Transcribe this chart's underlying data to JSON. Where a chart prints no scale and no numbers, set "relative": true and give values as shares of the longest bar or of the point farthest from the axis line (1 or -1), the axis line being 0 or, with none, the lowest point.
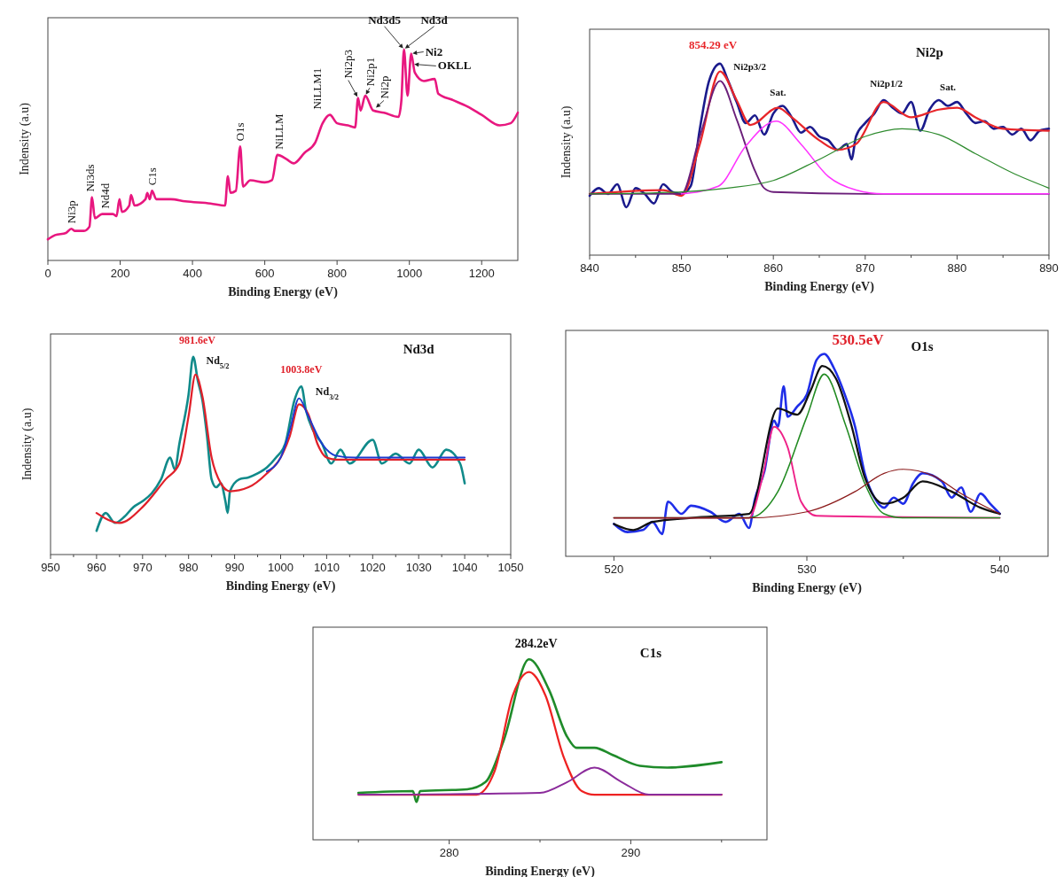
{
  "chart_data": [
    {
      "type": "line",
      "relative": true,
      "xlabel": "Binding Energy (eV)",
      "ylabel": "Indensity (a.u)",
      "xlim": [
        0,
        1300
      ],
      "xticks": [
        0,
        200,
        400,
        600,
        800,
        1000,
        1200
      ],
      "series": [
        {
          "color": "#e8177f",
          "x": [
            0,
            20,
            50,
            65,
            75,
            100,
            115,
            122,
            130,
            150,
            180,
            190,
            198,
            205,
            225,
            230,
            240,
            270,
            275,
            282,
            288,
            300,
            340,
            380,
            450,
            490,
            498,
            505,
            520,
            532,
            540,
            560,
            600,
            620,
            635,
            660,
            680,
            710,
            740,
            760,
            780,
            800,
            830,
            850,
            858,
            865,
            878,
            900,
            930,
            970,
            978,
            985,
            995,
            1005,
            1015,
            1040,
            1070,
            1080,
            1120,
            1160,
            1200,
            1250,
            1280,
            1300
          ],
          "values": [
            0.1,
            0.12,
            0.13,
            0.15,
            0.14,
            0.14,
            0.16,
            0.3,
            0.2,
            0.22,
            0.22,
            0.21,
            0.29,
            0.23,
            0.26,
            0.31,
            0.26,
            0.29,
            0.32,
            0.29,
            0.33,
            0.29,
            0.29,
            0.28,
            0.27,
            0.26,
            0.4,
            0.32,
            0.33,
            0.54,
            0.35,
            0.38,
            0.37,
            0.38,
            0.5,
            0.48,
            0.46,
            0.51,
            0.56,
            0.65,
            0.69,
            0.65,
            0.64,
            0.63,
            0.77,
            0.71,
            0.78,
            0.71,
            0.7,
            0.68,
            0.76,
            1.0,
            0.78,
            0.98,
            0.89,
            0.85,
            0.86,
            0.79,
            0.76,
            0.73,
            0.69,
            0.64,
            0.65,
            0.7
          ]
        }
      ],
      "annotations": [
        {
          "text": "Ni3p",
          "x": 65,
          "y": 0.15
        },
        {
          "text": "Ni3ds",
          "x": 122,
          "y": 0.3
        },
        {
          "text": "Nd4d",
          "x": 135,
          "y": 0.22
        },
        {
          "text": "C1s",
          "x": 288,
          "y": 0.33
        },
        {
          "text": "O1s",
          "x": 532,
          "y": 0.54
        },
        {
          "text": "NiLLM",
          "x": 640,
          "y": 0.5
        },
        {
          "text": "NiLLM1",
          "x": 760,
          "y": 0.69
        },
        {
          "text": "Ni2p3",
          "x": 858,
          "y": 0.77
        },
        {
          "text": "Ni2p1",
          "x": 878,
          "y": 0.78
        },
        {
          "text": "Ni2p",
          "x": 905,
          "y": 0.72
        },
        {
          "text": "Nd3d5",
          "x": 985,
          "y": 1.0
        },
        {
          "text": "Nd3d",
          "x": 985,
          "y": 1.0
        },
        {
          "text": "Ni2",
          "x": 1005,
          "y": 0.98
        },
        {
          "text": "OKLL",
          "x": 1010,
          "y": 0.93
        }
      ]
    },
    {
      "type": "line",
      "relative": true,
      "title": "Ni2p",
      "xlabel": "Binding Energy (eV)",
      "ylabel": "Indensity (a.u)",
      "xlim": [
        840,
        890
      ],
      "xticks": [
        840,
        {
          "value": 845,
          "label": null
        },
        850,
        {
          "value": 855,
          "label": null
        },
        860,
        {
          "value": 865,
          "label": null
        },
        870,
        {
          "value": 875,
          "label": null
        },
        880,
        {
          "value": 885,
          "label": null
        },
        890
      ],
      "series": [
        {
          "color": "#1a1a8c",
          "x": [
            840,
            841,
            842,
            843,
            844,
            845,
            846,
            847,
            848,
            849,
            850,
            851,
            852,
            853,
            854.2,
            855,
            856,
            857,
            858,
            859,
            860,
            861,
            862,
            863,
            864,
            865,
            866,
            867,
            868,
            868.5,
            869,
            870,
            871,
            872,
            873,
            874,
            875,
            876,
            877,
            878,
            879,
            880,
            881,
            882,
            883,
            884,
            885,
            886,
            887,
            888,
            889,
            890
          ],
          "values": [
            0.31,
            0.35,
            0.32,
            0.37,
            0.25,
            0.35,
            0.32,
            0.27,
            0.37,
            0.33,
            0.32,
            0.36,
            0.66,
            0.91,
            1.0,
            0.92,
            0.8,
            0.69,
            0.73,
            0.63,
            0.74,
            0.78,
            0.72,
            0.64,
            0.67,
            0.62,
            0.6,
            0.55,
            0.58,
            0.5,
            0.62,
            0.69,
            0.74,
            0.81,
            0.77,
            0.74,
            0.8,
            0.65,
            0.76,
            0.81,
            0.78,
            0.8,
            0.74,
            0.69,
            0.7,
            0.66,
            0.67,
            0.63,
            0.66,
            0.6,
            0.65,
            0.66
          ]
        },
        {
          "color": "#e8262a",
          "x": [
            840,
            848,
            850,
            852,
            854.2,
            856,
            857.5,
            860.5,
            862,
            865,
            867,
            869,
            872,
            875,
            878,
            880,
            882,
            885,
            890
          ],
          "values": [
            0.32,
            0.34,
            0.31,
            0.58,
            0.96,
            0.81,
            0.68,
            0.77,
            0.72,
            0.6,
            0.55,
            0.58,
            0.8,
            0.72,
            0.76,
            0.77,
            0.72,
            0.66,
            0.65
          ]
        },
        {
          "color": "#6b1f7a",
          "x": [
            840,
            850,
            852,
            854.2,
            856,
            858,
            859,
            860,
            870,
            890
          ],
          "values": [
            0.32,
            0.32,
            0.62,
            0.91,
            0.71,
            0.44,
            0.35,
            0.33,
            0.32,
            0.32
          ]
        },
        {
          "color": "#ff33ff",
          "x": [
            850,
            854,
            857,
            860.3,
            863,
            866,
            869,
            872,
            890
          ],
          "values": [
            0.32,
            0.36,
            0.57,
            0.7,
            0.58,
            0.41,
            0.34,
            0.32,
            0.32
          ]
        },
        {
          "color": "#2e8b2e",
          "x": [
            840,
            850,
            855,
            860,
            865,
            870,
            874,
            878,
            882,
            886,
            890
          ],
          "values": [
            0.32,
            0.33,
            0.35,
            0.39,
            0.5,
            0.62,
            0.66,
            0.63,
            0.53,
            0.43,
            0.35
          ]
        }
      ],
      "annotations": [
        {
          "text": "854.29 eV",
          "x": 854.2,
          "y": 1.0
        },
        {
          "text": "Ni2p3/2",
          "x": 854.5,
          "y": 1.0
        },
        {
          "text": "Sat.",
          "x": 860.5,
          "y": 0.78
        },
        {
          "text": "Ni2p1/2",
          "x": 872.3,
          "y": 0.81
        },
        {
          "text": "Sat.",
          "x": 879,
          "y": 0.8
        }
      ]
    },
    {
      "type": "line",
      "relative": true,
      "title": "Nd3d",
      "xlabel": "Binding Energy (eV)",
      "ylabel": "Indensity (a.u)",
      "xlim": [
        950,
        1050
      ],
      "xticks": [
        950,
        {
          "value": 955,
          "label": null
        },
        960,
        {
          "value": 965,
          "label": null
        },
        970,
        {
          "value": 975,
          "label": null
        },
        980,
        {
          "value": 985,
          "label": null
        },
        990,
        {
          "value": 995,
          "label": null
        },
        1000,
        {
          "value": 1005,
          "label": null
        },
        1010,
        {
          "value": 1015,
          "label": null
        },
        1020,
        {
          "value": 1025,
          "label": null
        },
        1030,
        {
          "value": 1035,
          "label": null
        },
        1040,
        {
          "value": 1045,
          "label": null
        },
        1050
      ],
      "series": [
        {
          "color": "#108a8a",
          "x": [
            960,
            962,
            964,
            966,
            968,
            970,
            972,
            974,
            976,
            977,
            978,
            980,
            981,
            982,
            983,
            984,
            985,
            986,
            987,
            988,
            988.5,
            989,
            991,
            993,
            995,
            997,
            999,
            1001,
            1003,
            1004.5,
            1005.5,
            1007,
            1009,
            1011,
            1013,
            1015,
            1020,
            1022,
            1025,
            1028,
            1030,
            1033,
            1036,
            1039,
            1040
          ],
          "values": [
            0.12,
            0.21,
            0.16,
            0.19,
            0.24,
            0.27,
            0.31,
            0.38,
            0.49,
            0.43,
            0.56,
            0.81,
            1.0,
            0.88,
            0.78,
            0.6,
            0.38,
            0.34,
            0.36,
            0.27,
            0.21,
            0.32,
            0.38,
            0.39,
            0.41,
            0.44,
            0.49,
            0.56,
            0.78,
            0.85,
            0.73,
            0.63,
            0.56,
            0.46,
            0.53,
            0.46,
            0.58,
            0.46,
            0.51,
            0.46,
            0.53,
            0.44,
            0.53,
            0.46,
            0.36
          ]
        },
        {
          "color": "#e0202a",
          "x": [
            960,
            965,
            970,
            975,
            978,
            980,
            981.5,
            983,
            985,
            987,
            989,
            993,
            997,
            1000,
            1002,
            1004,
            1006,
            1008,
            1010,
            1012,
            1040
          ],
          "values": [
            0.21,
            0.16,
            0.24,
            0.38,
            0.46,
            0.7,
            0.91,
            0.8,
            0.49,
            0.36,
            0.32,
            0.34,
            0.41,
            0.49,
            0.6,
            0.76,
            0.71,
            0.56,
            0.49,
            0.48,
            0.48
          ]
        },
        {
          "color": "#1a3ad0",
          "x": [
            997,
            1000,
            1002,
            1004,
            1006,
            1009,
            1012,
            1016,
            1040
          ],
          "values": [
            0.42,
            0.49,
            0.63,
            0.79,
            0.7,
            0.56,
            0.5,
            0.49,
            0.49
          ]
        }
      ],
      "annotations": [
        {
          "text": "981.6eV",
          "x": 981.5,
          "y": 1.0
        },
        {
          "text": "Nd$_{5/2}$",
          "x": 981.5,
          "y": 1.0
        },
        {
          "text": "1003.8eV",
          "x": 1004.5,
          "y": 0.85
        },
        {
          "text": "Nd$_{3/2}$",
          "x": 1004.5,
          "y": 0.85
        }
      ]
    },
    {
      "type": "line",
      "relative": true,
      "title": "O1s",
      "xlabel": "Binding Energy (eV)",
      "xlim": [
        517.5,
        542.5
      ],
      "xticks": [
        520,
        {
          "value": 525,
          "label": null
        },
        530,
        {
          "value": 535,
          "label": null
        },
        540
      ],
      "series": [
        {
          "color": "#1f2ee8",
          "x": [
            520,
            520.7,
            521.5,
            522,
            522.5,
            522.8,
            523.5,
            524,
            525,
            525.8,
            526.5,
            527,
            527.3,
            527.8,
            528.3,
            528.5,
            528.8,
            529,
            529.5,
            530,
            530.5,
            530.9,
            531.4,
            532,
            532.5,
            533,
            533.5,
            534,
            534.5,
            535,
            535.5,
            536,
            537,
            537.5,
            538,
            538.5,
            539,
            539.5,
            540
          ],
          "values": [
            0.16,
            0.12,
            0.13,
            0.17,
            0.11,
            0.27,
            0.21,
            0.25,
            0.22,
            0.17,
            0.21,
            0.14,
            0.28,
            0.42,
            0.67,
            0.64,
            0.84,
            0.69,
            0.74,
            0.8,
            0.97,
            1.0,
            0.93,
            0.79,
            0.64,
            0.41,
            0.29,
            0.24,
            0.29,
            0.26,
            0.36,
            0.41,
            0.37,
            0.29,
            0.34,
            0.22,
            0.31,
            0.26,
            0.21
          ]
        },
        {
          "color": "#111111",
          "x": [
            520,
            521,
            522,
            524,
            527,
            528.5,
            529.5,
            530.2,
            530.8,
            531.5,
            532.3,
            533,
            534,
            535,
            536,
            537.5,
            539,
            540
          ],
          "values": [
            0.16,
            0.13,
            0.17,
            0.19,
            0.21,
            0.73,
            0.7,
            0.82,
            0.94,
            0.88,
            0.65,
            0.39,
            0.26,
            0.29,
            0.37,
            0.32,
            0.24,
            0.21
          ]
        },
        {
          "color": "#ee2288",
          "x": [
            520,
            527,
            527.7,
            528.3,
            529,
            529.7,
            530.5,
            540
          ],
          "values": [
            0.19,
            0.19,
            0.39,
            0.64,
            0.54,
            0.27,
            0.2,
            0.19
          ]
        },
        {
          "color": "#228b22",
          "x": [
            520,
            527,
            528.5,
            530,
            530.9,
            532,
            533,
            534,
            535,
            540
          ],
          "values": [
            0.19,
            0.19,
            0.32,
            0.69,
            0.9,
            0.65,
            0.36,
            0.21,
            0.19,
            0.19
          ]
        },
        {
          "color": "#8b1a1a",
          "x": [
            520,
            527,
            530,
            532.5,
            534,
            535,
            536.5,
            538,
            540
          ],
          "values": [
            0.19,
            0.19,
            0.22,
            0.32,
            0.41,
            0.43,
            0.4,
            0.31,
            0.21
          ]
        }
      ],
      "annotations": [
        {
          "text": "530.5eV",
          "x": 530.9,
          "y": 1.0
        }
      ]
    },
    {
      "type": "line",
      "relative": true,
      "title": "C1s",
      "xlabel": "Binding Energy (eV)",
      "xlim": [
        272.5,
        297.5
      ],
      "xticks": [
        {
          "value": 275,
          "label": null
        },
        280,
        {
          "value": 285,
          "label": null
        },
        290,
        {
          "value": 295,
          "label": null
        }
      ],
      "series": [
        {
          "color": "#1f8b2a",
          "x": [
            275,
            278,
            278.2,
            278.4,
            281,
            282,
            283,
            284.4,
            285.5,
            286.5,
            287,
            288,
            289,
            290.5,
            292,
            295
          ],
          "values": [
            0.26,
            0.27,
            0.21,
            0.27,
            0.28,
            0.32,
            0.55,
            1.0,
            0.83,
            0.57,
            0.51,
            0.51,
            0.47,
            0.41,
            0.4,
            0.43
          ]
        },
        {
          "color": "#ee2222",
          "x": [
            275,
            281.5,
            282.5,
            283.5,
            284.4,
            285.3,
            286.3,
            287.3,
            288,
            295
          ],
          "values": [
            0.25,
            0.25,
            0.38,
            0.8,
            0.93,
            0.8,
            0.46,
            0.27,
            0.25,
            0.25
          ]
        },
        {
          "color": "#8b2b9b",
          "x": [
            275,
            285,
            286.5,
            288,
            289.5,
            291,
            295
          ],
          "values": [
            0.25,
            0.26,
            0.32,
            0.4,
            0.32,
            0.25,
            0.25
          ]
        }
      ],
      "annotations": [
        {
          "text": "284.2eV",
          "x": 284.4,
          "y": 1.0
        }
      ]
    }
  ]
}
